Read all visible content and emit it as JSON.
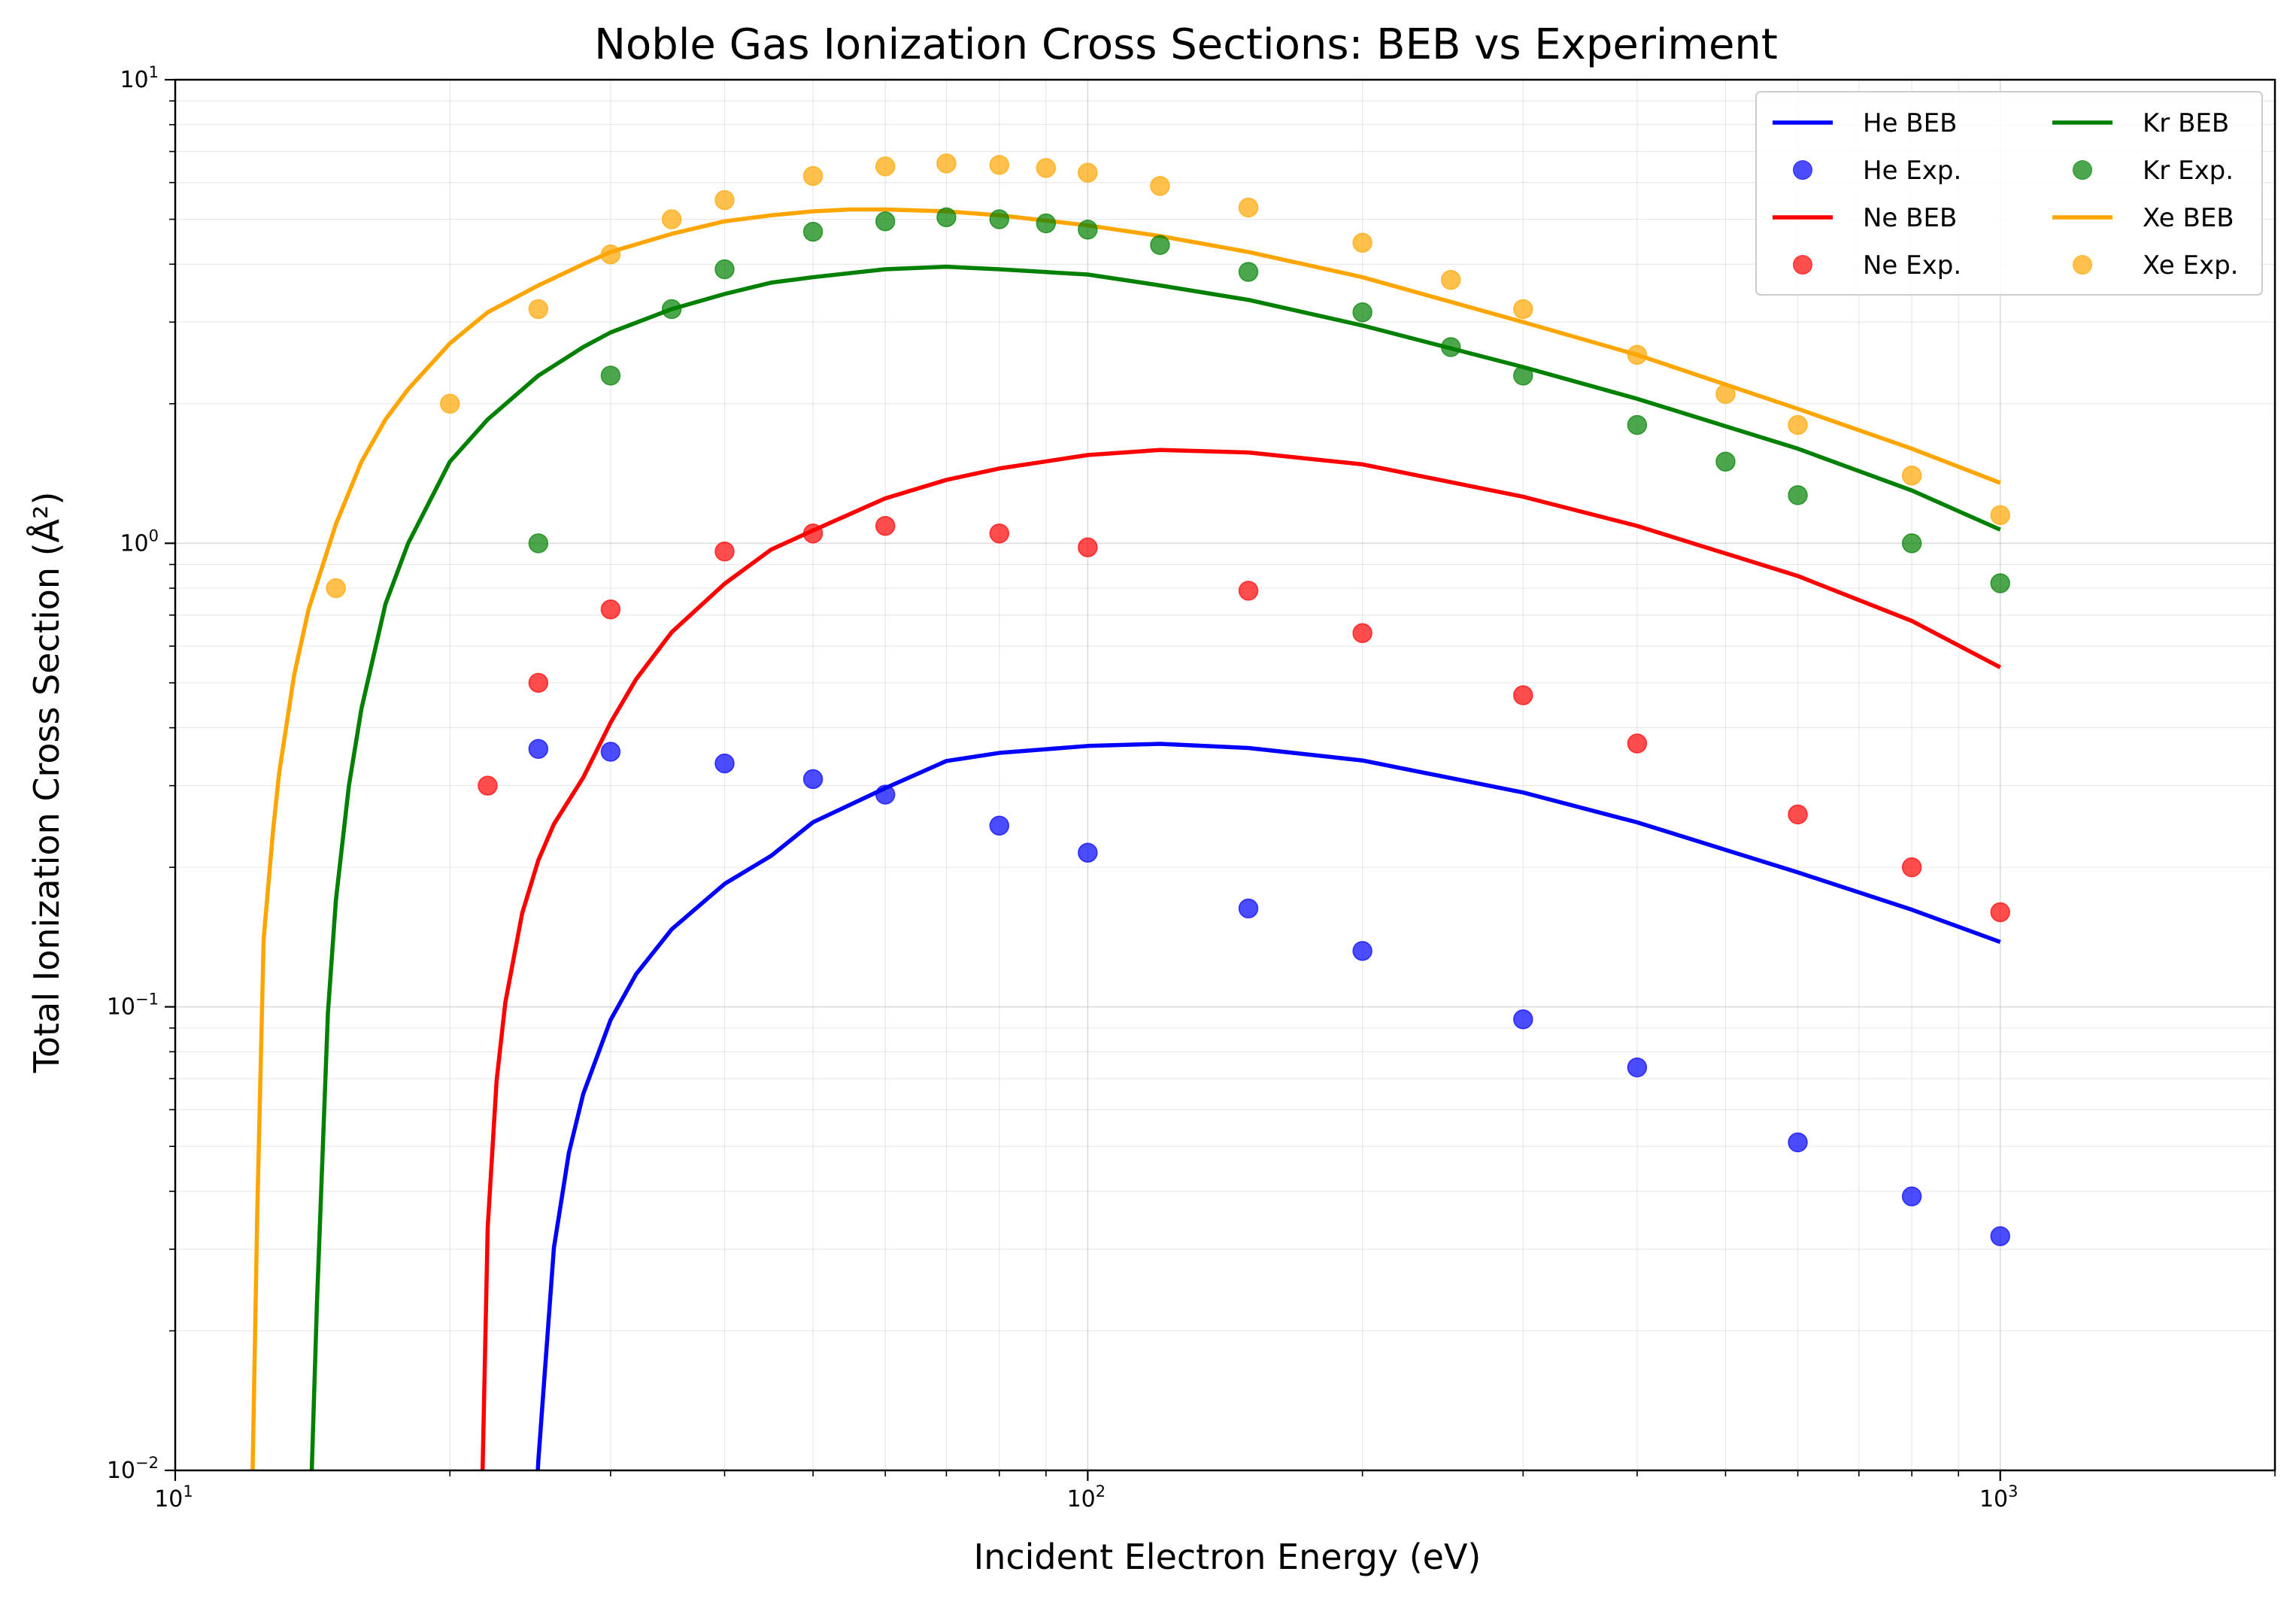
{
  "chart_data": {
    "type": "line",
    "title": "Noble Gas Ionization Cross Sections: BEB vs Experiment",
    "xlabel": "Incident Electron Energy (eV)",
    "ylabel": "Total Ionization Cross Section (Å²)",
    "xscale": "log",
    "yscale": "log",
    "xlim": [
      10,
      2000
    ],
    "ylim": [
      0.01,
      10
    ],
    "grid": true,
    "legend_position": "top-right",
    "legend_columns": 2,
    "x_ticks": [
      {
        "value": 10,
        "base": "10",
        "exp": "1"
      },
      {
        "value": 100,
        "base": "10",
        "exp": "2"
      },
      {
        "value": 1000,
        "base": "10",
        "exp": "3"
      }
    ],
    "y_ticks": [
      {
        "value": 0.01,
        "base": "10",
        "exp": "−2"
      },
      {
        "value": 0.1,
        "base": "10",
        "exp": "−1"
      },
      {
        "value": 1,
        "base": "10",
        "exp": "0"
      },
      {
        "value": 10,
        "base": "10",
        "exp": "1"
      }
    ],
    "series": [
      {
        "name": "He BEB",
        "kind": "line",
        "color": "#0000ff",
        "x": [
          24.6,
          25,
          26,
          27,
          28,
          30,
          32,
          35,
          40,
          45,
          50,
          60,
          70,
          80,
          100,
          120,
          150,
          200,
          300,
          400,
          600,
          800,
          1000
        ],
        "y": [
          0.0,
          0.0105,
          0.0302,
          0.0484,
          0.0649,
          0.0937,
          0.1177,
          0.147,
          0.1842,
          0.2118,
          0.2502,
          0.2963,
          0.3391,
          0.353,
          0.3654,
          0.3692,
          0.3617,
          0.34,
          0.29,
          0.25,
          0.195,
          0.162,
          0.138
        ]
      },
      {
        "name": "He Exp.",
        "kind": "scatter",
        "color": "#0000ff",
        "x": [
          25,
          30,
          40,
          50,
          60,
          80,
          100,
          150,
          200,
          300,
          400,
          600,
          800,
          1000
        ],
        "y": [
          0.36,
          0.355,
          0.335,
          0.31,
          0.287,
          0.246,
          0.215,
          0.163,
          0.132,
          0.094,
          0.074,
          0.051,
          0.039,
          0.032
        ]
      },
      {
        "name": "Ne BEB",
        "kind": "line",
        "color": "#ff0000",
        "x": [
          21.6,
          22,
          22.5,
          23,
          24,
          25,
          26,
          28,
          30,
          32,
          35,
          40,
          45,
          50,
          60,
          70,
          80,
          100,
          120,
          150,
          200,
          300,
          400,
          600,
          800,
          1000
        ],
        "y": [
          0.0,
          0.0334,
          0.0693,
          0.1021,
          0.1592,
          0.2072,
          0.2478,
          0.3124,
          0.4103,
          0.5093,
          0.643,
          0.818,
          0.9697,
          1.066,
          1.25,
          1.37,
          1.45,
          1.55,
          1.59,
          1.57,
          1.48,
          1.26,
          1.09,
          0.85,
          0.68,
          0.54
        ]
      },
      {
        "name": "Ne Exp.",
        "kind": "scatter",
        "color": "#ff0000",
        "x": [
          22,
          25,
          30,
          40,
          50,
          60,
          80,
          100,
          150,
          200,
          300,
          400,
          600,
          800,
          1000
        ],
        "y": [
          0.3,
          0.5,
          0.72,
          0.96,
          1.05,
          1.09,
          1.05,
          0.98,
          0.79,
          0.64,
          0.47,
          0.37,
          0.26,
          0.2,
          0.16
        ]
      },
      {
        "name": "Kr BEB",
        "kind": "line",
        "color": "#008000",
        "x": [
          14.0,
          14.3,
          14.7,
          15,
          15.5,
          16,
          17,
          18,
          20,
          22,
          25,
          28,
          30,
          35,
          40,
          45,
          50,
          60,
          70,
          80,
          100,
          120,
          150,
          200,
          300,
          400,
          600,
          800,
          1000
        ],
        "y": [
          0.0,
          0.023,
          0.097,
          0.17,
          0.3,
          0.44,
          0.74,
          1.0,
          1.5,
          1.85,
          2.3,
          2.65,
          2.85,
          3.2,
          3.45,
          3.65,
          3.75,
          3.9,
          3.95,
          3.9,
          3.8,
          3.6,
          3.35,
          2.95,
          2.4,
          2.05,
          1.6,
          1.3,
          1.07
        ]
      },
      {
        "name": "Kr Exp.",
        "kind": "scatter",
        "color": "#008000",
        "x": [
          25,
          30,
          35,
          40,
          50,
          60,
          70,
          80,
          90,
          100,
          120,
          150,
          200,
          250,
          300,
          400,
          500,
          600,
          800,
          1000
        ],
        "y": [
          1.0,
          2.3,
          3.2,
          3.9,
          4.7,
          4.95,
          5.05,
          5.0,
          4.9,
          4.75,
          4.4,
          3.85,
          3.15,
          2.65,
          2.3,
          1.8,
          1.5,
          1.27,
          1.0,
          0.82
        ]
      },
      {
        "name": "Xe BEB",
        "kind": "line",
        "color": "#ffa500",
        "x": [
          12.1,
          12.3,
          12.5,
          12.8,
          13,
          13.5,
          14,
          15,
          16,
          17,
          18,
          20,
          22,
          25,
          28,
          30,
          35,
          40,
          45,
          50,
          55,
          60,
          70,
          80,
          100,
          120,
          150,
          200,
          300,
          400,
          600,
          800,
          1000
        ],
        "y": [
          0.0,
          0.036,
          0.14,
          0.24,
          0.32,
          0.52,
          0.72,
          1.1,
          1.5,
          1.85,
          2.15,
          2.7,
          3.15,
          3.6,
          4.0,
          4.25,
          4.65,
          4.95,
          5.1,
          5.2,
          5.25,
          5.25,
          5.2,
          5.1,
          4.85,
          4.6,
          4.25,
          3.75,
          3.0,
          2.55,
          1.95,
          1.6,
          1.35
        ]
      },
      {
        "name": "Xe Exp.",
        "kind": "scatter",
        "color": "#ffa500",
        "x": [
          15,
          20,
          25,
          30,
          35,
          40,
          50,
          60,
          70,
          80,
          90,
          100,
          120,
          150,
          200,
          250,
          300,
          400,
          500,
          600,
          800,
          1000
        ],
        "y": [
          0.8,
          2.0,
          3.2,
          4.2,
          5.0,
          5.5,
          6.2,
          6.5,
          6.6,
          6.55,
          6.45,
          6.3,
          5.9,
          5.3,
          4.45,
          3.7,
          3.2,
          2.55,
          2.1,
          1.8,
          1.4,
          1.15
        ]
      }
    ]
  }
}
